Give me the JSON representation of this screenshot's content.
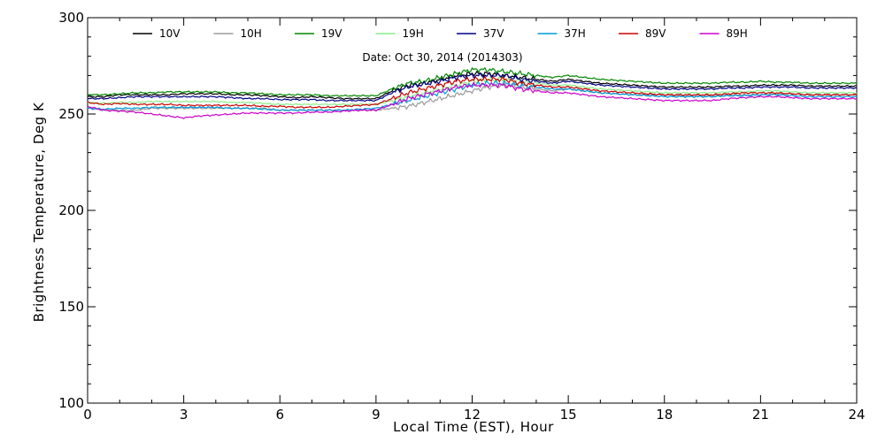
{
  "chart_data": {
    "type": "line",
    "title": "",
    "annotation": "Date: Oct 30, 2014 (2014303)",
    "xlabel": "Local Time (EST), Hour",
    "ylabel": "Brightness Temperature, Deg K",
    "xlim": [
      0,
      24
    ],
    "ylim": [
      100,
      300
    ],
    "x_ticks": [
      0,
      3,
      6,
      9,
      12,
      15,
      18,
      21,
      24
    ],
    "y_ticks": [
      100,
      150,
      200,
      250,
      300
    ],
    "grid": false,
    "legend_position": "top",
    "x": [
      0,
      0.5,
      1,
      1.5,
      2,
      2.5,
      3,
      3.5,
      4,
      4.5,
      5,
      5.5,
      6,
      6.5,
      7,
      7.5,
      8,
      8.5,
      9,
      9.5,
      10,
      10.5,
      11,
      11.5,
      12,
      12.5,
      13,
      13.5,
      14,
      14.5,
      15,
      15.5,
      16,
      16.5,
      17,
      17.5,
      18,
      18.5,
      19,
      19.5,
      20,
      20.5,
      21,
      21.5,
      22,
      22.5,
      23,
      23.5,
      24
    ],
    "series": [
      {
        "name": "10V",
        "color": "#000000",
        "values": [
          259,
          259,
          260,
          260,
          260,
          260,
          260.5,
          260.5,
          260.5,
          260,
          260,
          259.5,
          259,
          258.5,
          259,
          258.5,
          258,
          258,
          258,
          262,
          265,
          266,
          268,
          270,
          271,
          271,
          270,
          269,
          268,
          267,
          268,
          267,
          266,
          265.5,
          265,
          264.5,
          264,
          264,
          264,
          264,
          264.5,
          264.5,
          265,
          265,
          265,
          264.5,
          264.5,
          264.5,
          264.5
        ]
      },
      {
        "name": "10H",
        "color": "#999999",
        "values": [
          253,
          252,
          252,
          252,
          253,
          253,
          253,
          253,
          253,
          253,
          253,
          253,
          252,
          252,
          252,
          252,
          252,
          252,
          252,
          253,
          254,
          256,
          258,
          260,
          262,
          264,
          265,
          264,
          263,
          262,
          263,
          262,
          261,
          260.5,
          260,
          260,
          260,
          259.5,
          259.5,
          259.5,
          260,
          260,
          260,
          260.5,
          260.5,
          260,
          260,
          260,
          260
        ]
      },
      {
        "name": "19V",
        "color": "#008800",
        "values": [
          260,
          260,
          260.5,
          261,
          261,
          261.5,
          261.5,
          261.5,
          261.5,
          261,
          261,
          260.5,
          260,
          260,
          260,
          259.5,
          259.5,
          259.5,
          259.5,
          263,
          266,
          267,
          269,
          271,
          273,
          273,
          272,
          271,
          270,
          269,
          270,
          269,
          268,
          267.5,
          267,
          266.5,
          266,
          266,
          266,
          266,
          266.5,
          266.5,
          267,
          266.5,
          266.5,
          266,
          266,
          266,
          266
        ]
      },
      {
        "name": "19H",
        "color": "#88EE88",
        "values": [
          256,
          255.5,
          256,
          256,
          256.5,
          256.5,
          256.5,
          256.5,
          256.5,
          256,
          256,
          255.5,
          255,
          255,
          255,
          255,
          255,
          255,
          255,
          257,
          259,
          261,
          263,
          265,
          267,
          268,
          268,
          267,
          266,
          265,
          265,
          264,
          263,
          262.5,
          262,
          261.5,
          261,
          261,
          261,
          261,
          261.5,
          261.5,
          262,
          262,
          261.5,
          261,
          261,
          261,
          261
        ]
      },
      {
        "name": "37V",
        "color": "#000088",
        "values": [
          258,
          258,
          258.5,
          259,
          259,
          259,
          259,
          259,
          259,
          258.5,
          258,
          258,
          257.5,
          257.5,
          257.5,
          257,
          257,
          257,
          257,
          261,
          264,
          265.5,
          267,
          269,
          270,
          270,
          270,
          268,
          267,
          266,
          267,
          266,
          265,
          264.5,
          264,
          263.5,
          263,
          263,
          263,
          263,
          263.5,
          263.5,
          264,
          264,
          264,
          263.5,
          263.5,
          263.5,
          263.5
        ]
      },
      {
        "name": "37H",
        "color": "#0099DD",
        "values": [
          253,
          252.5,
          253,
          253,
          253.5,
          253.5,
          253.5,
          253.5,
          253.5,
          253,
          253,
          252.5,
          252,
          252,
          252,
          252,
          252,
          252.5,
          253,
          255,
          257,
          259,
          261,
          263,
          265,
          266,
          266,
          265,
          264,
          263,
          263,
          262,
          261,
          260.5,
          260,
          259.5,
          259,
          259,
          259,
          259,
          259.5,
          259.5,
          260,
          260,
          259.5,
          259,
          259,
          259,
          259
        ]
      },
      {
        "name": "89V",
        "color": "#CC0000",
        "values": [
          256,
          255,
          255.5,
          255,
          255,
          255,
          254.5,
          254.5,
          254.5,
          254.5,
          254.5,
          254,
          254,
          253.5,
          253.5,
          253.5,
          254,
          254.5,
          255,
          258,
          261,
          263,
          265,
          267,
          268,
          268,
          268,
          266,
          265,
          264,
          264,
          263,
          262,
          261.5,
          261,
          260.5,
          260,
          260,
          260,
          260,
          260.5,
          261,
          261,
          261,
          260.5,
          260,
          260,
          260,
          260
        ]
      },
      {
        "name": "89H",
        "color": "#CC00CC",
        "values": [
          254,
          252,
          251.5,
          251,
          250,
          249,
          248,
          249,
          249.5,
          250,
          250.5,
          250.5,
          250.5,
          250.5,
          251,
          251,
          251.5,
          252,
          252,
          255,
          258,
          260,
          262,
          264,
          265,
          265,
          265,
          263,
          262,
          261,
          261,
          260,
          259,
          258.5,
          258,
          257.5,
          257,
          257,
          257,
          257,
          258,
          258.5,
          259,
          259,
          258.5,
          258,
          258,
          258,
          258
        ]
      }
    ]
  }
}
